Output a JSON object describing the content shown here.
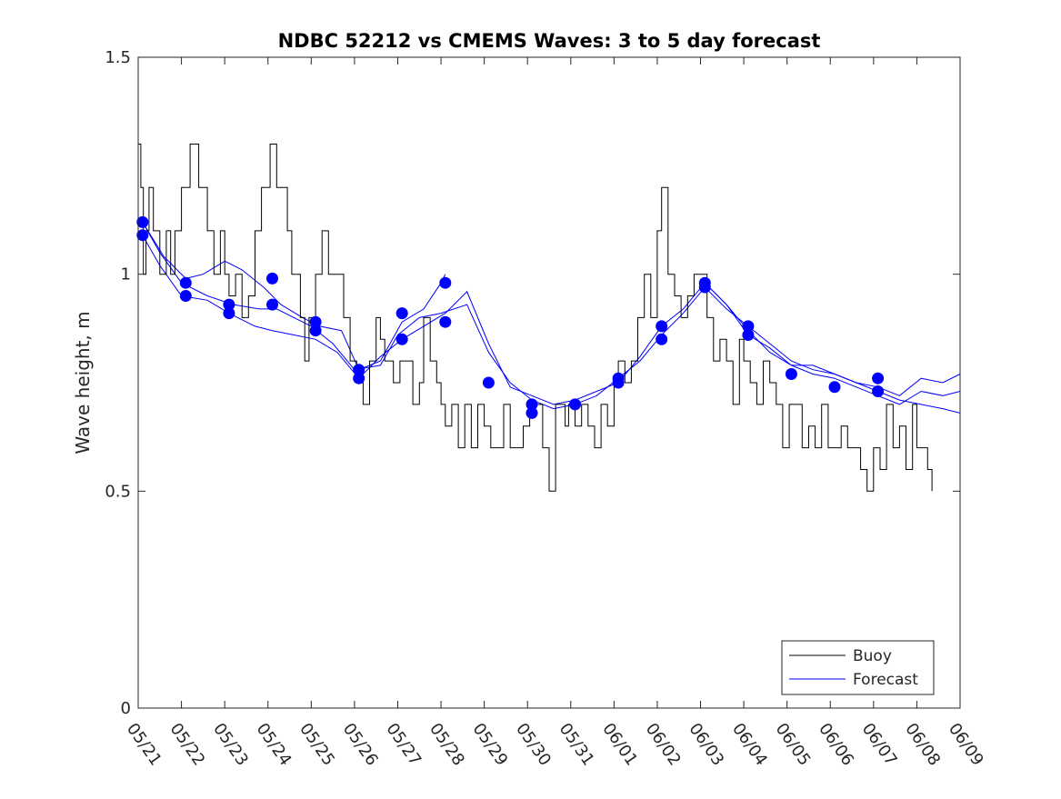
{
  "chart_data": {
    "type": "line",
    "title": "NDBC 52212 vs CMEMS Waves: 3 to 5 day forecast",
    "xlabel": "",
    "ylabel": "Wave height, m",
    "xlim": [
      0,
      19
    ],
    "ylim": [
      0,
      1.5
    ],
    "x_tick_labels": [
      "05/21",
      "05/22",
      "05/23",
      "05/24",
      "05/25",
      "05/26",
      "05/27",
      "05/28",
      "05/29",
      "05/30",
      "05/31",
      "06/01",
      "06/02",
      "06/03",
      "06/04",
      "06/05",
      "06/06",
      "06/07",
      "06/08",
      "06/09"
    ],
    "y_ticks": [
      0,
      0.5,
      1,
      1.5
    ],
    "y_tick_labels": [
      "0",
      "0.5",
      "1",
      "1.5"
    ],
    "grid": false,
    "legend": {
      "position": "bottom-right",
      "entries": [
        "Buoy",
        "Forecast"
      ]
    },
    "colors": {
      "buoy": "#000000",
      "forecast": "#0000ff"
    },
    "buoy": {
      "name": "Buoy",
      "x": [
        0,
        0.06,
        0.12,
        0.18,
        0.25,
        0.35,
        0.5,
        0.65,
        0.75,
        0.85,
        1.0,
        1.2,
        1.4,
        1.6,
        1.75,
        1.9,
        2.0,
        2.1,
        2.25,
        2.4,
        2.55,
        2.7,
        2.85,
        2.95,
        3.05,
        3.2,
        3.35,
        3.45,
        3.55,
        3.75,
        3.85,
        3.95,
        4.1,
        4.25,
        4.4,
        4.6,
        4.75,
        4.9,
        5.05,
        5.2,
        5.35,
        5.5,
        5.6,
        5.7,
        5.75,
        5.9,
        6.05,
        6.2,
        6.35,
        6.5,
        6.6,
        6.75,
        6.9,
        7.0,
        7.1,
        7.25,
        7.4,
        7.55,
        7.7,
        7.85,
        8.0,
        8.15,
        8.3,
        8.45,
        8.6,
        8.75,
        8.9,
        9.05,
        9.2,
        9.35,
        9.5,
        9.65,
        9.8,
        9.87,
        9.95,
        10.1,
        10.25,
        10.4,
        10.55,
        10.7,
        10.85,
        11.0,
        11.1,
        11.25,
        11.4,
        11.55,
        11.7,
        11.85,
        12.0,
        12.1,
        12.25,
        12.4,
        12.55,
        12.7,
        12.85,
        13.0,
        13.15,
        13.3,
        13.45,
        13.6,
        13.75,
        13.9,
        14.0,
        14.15,
        14.3,
        14.45,
        14.6,
        14.75,
        14.9,
        15.05,
        15.2,
        15.35,
        15.5,
        15.65,
        15.8,
        15.95,
        16.1,
        16.25,
        16.4,
        16.55,
        16.7,
        16.85,
        17.0,
        17.15,
        17.3,
        17.45,
        17.6,
        17.75,
        17.9,
        18.0,
        18.1,
        18.25,
        18.35
      ],
      "y": [
        1.3,
        1.2,
        1.0,
        1.1,
        1.2,
        1.1,
        1.0,
        1.1,
        1.0,
        1.1,
        1.2,
        1.3,
        1.2,
        1.1,
        1.0,
        1.1,
        1.0,
        0.95,
        1.0,
        0.9,
        0.95,
        1.1,
        1.2,
        1.2,
        1.3,
        1.2,
        1.2,
        1.1,
        1.0,
        0.9,
        0.8,
        0.9,
        1.0,
        1.1,
        1.0,
        1.0,
        0.9,
        0.8,
        0.75,
        0.7,
        0.8,
        0.9,
        0.85,
        0.8,
        0.8,
        0.75,
        0.8,
        0.8,
        0.7,
        0.75,
        0.9,
        0.8,
        0.75,
        0.7,
        0.65,
        0.7,
        0.6,
        0.7,
        0.6,
        0.7,
        0.65,
        0.6,
        0.6,
        0.7,
        0.6,
        0.6,
        0.65,
        0.7,
        0.7,
        0.6,
        0.5,
        0.7,
        0.7,
        0.65,
        0.7,
        0.65,
        0.7,
        0.65,
        0.6,
        0.7,
        0.65,
        0.75,
        0.8,
        0.75,
        0.8,
        0.9,
        1.0,
        0.9,
        1.1,
        1.2,
        1.0,
        0.95,
        0.9,
        0.95,
        1.0,
        1.0,
        0.9,
        0.8,
        0.85,
        0.8,
        0.7,
        0.85,
        0.8,
        0.75,
        0.7,
        0.8,
        0.75,
        0.7,
        0.6,
        0.7,
        0.7,
        0.6,
        0.65,
        0.6,
        0.7,
        0.6,
        0.6,
        0.65,
        0.6,
        0.6,
        0.55,
        0.5,
        0.6,
        0.55,
        0.7,
        0.6,
        0.65,
        0.55,
        0.7,
        0.6,
        0.6,
        0.55,
        0.5
      ]
    },
    "forecast": {
      "name": "Forecast",
      "runs": [
        {
          "x": [
            0.1,
            0.5,
            1.0,
            1.6,
            2.2,
            2.8,
            3.2,
            3.6,
            4.0,
            4.5,
            5.0,
            5.6,
            6.0,
            6.5,
            7.0,
            7.6,
            8.1,
            8.6,
            9.1,
            9.6,
            10.1,
            10.6,
            11.1,
            11.6,
            12.1,
            12.6,
            13.1,
            13.6,
            14.1,
            14.6,
            15.1,
            15.6,
            16.1,
            16.6,
            17.1,
            17.6,
            18.1,
            18.6,
            19.0
          ],
          "y": [
            1.12,
            1.05,
            0.98,
            0.95,
            0.93,
            0.92,
            0.92,
            0.9,
            0.88,
            0.84,
            0.78,
            0.79,
            0.86,
            0.9,
            0.91,
            0.93,
            0.82,
            0.75,
            0.71,
            0.69,
            0.7,
            0.72,
            0.76,
            0.8,
            0.86,
            0.91,
            0.97,
            0.92,
            0.88,
            0.84,
            0.8,
            0.78,
            0.77,
            0.75,
            0.73,
            0.71,
            0.7,
            0.69,
            0.68
          ]
        },
        {
          "x": [
            0.1,
            0.5,
            1.0,
            1.6,
            2.1,
            2.7,
            3.1,
            3.6,
            4.1,
            4.6,
            5.1,
            5.6,
            6.1,
            6.6,
            7.1,
            7.6,
            8.1,
            8.6,
            9.1,
            9.6,
            10.1,
            10.6,
            11.1,
            11.6,
            12.1,
            12.6,
            13.1,
            13.6,
            14.1,
            14.6,
            15.1,
            15.6,
            16.1,
            16.6,
            17.1,
            17.6,
            18.1,
            18.6,
            19.0
          ],
          "y": [
            1.09,
            1.02,
            0.95,
            0.94,
            0.91,
            0.88,
            0.87,
            0.86,
            0.85,
            0.82,
            0.76,
            0.81,
            0.85,
            0.88,
            0.91,
            0.96,
            0.84,
            0.74,
            0.72,
            0.7,
            0.71,
            0.73,
            0.75,
            0.81,
            0.88,
            0.92,
            0.98,
            0.93,
            0.86,
            0.83,
            0.79,
            0.77,
            0.76,
            0.74,
            0.72,
            0.7,
            0.73,
            0.72,
            0.73
          ]
        },
        {
          "x": [
            0.1,
            0.6,
            1.1,
            1.5,
            2.0,
            2.4,
            2.9,
            3.3,
            3.8,
            4.2,
            4.7,
            5.1,
            5.6,
            6.1,
            6.6,
            7.0,
            7.1
          ],
          "y": [
            1.12,
            1.04,
            0.99,
            1.0,
            1.03,
            1.01,
            0.97,
            0.93,
            0.9,
            0.88,
            0.87,
            0.78,
            0.8,
            0.89,
            0.92,
            0.98,
            1.0
          ]
        },
        {
          "x": [
            13.1,
            13.6,
            14.1,
            14.6,
            15.1,
            15.6,
            16.1,
            16.6,
            17.1,
            17.6,
            18.1,
            18.6,
            19.0
          ],
          "y": [
            0.98,
            0.93,
            0.87,
            0.82,
            0.79,
            0.79,
            0.77,
            0.75,
            0.74,
            0.72,
            0.76,
            0.75,
            0.77
          ]
        }
      ],
      "markers": {
        "x": [
          0.1,
          0.1,
          1.1,
          1.1,
          2.1,
          2.1,
          3.1,
          3.1,
          4.1,
          4.1,
          5.1,
          5.1,
          6.1,
          6.1,
          7.1,
          7.1,
          8.1,
          9.1,
          9.1,
          10.1,
          11.1,
          11.1,
          12.1,
          12.1,
          13.1,
          13.1,
          14.1,
          14.1,
          15.1,
          16.1,
          17.1,
          17.1
        ],
        "y": [
          1.12,
          1.09,
          0.98,
          0.95,
          0.93,
          0.91,
          0.99,
          0.93,
          0.89,
          0.87,
          0.78,
          0.76,
          0.91,
          0.85,
          0.98,
          0.89,
          0.75,
          0.7,
          0.68,
          0.7,
          0.76,
          0.75,
          0.88,
          0.85,
          0.98,
          0.97,
          0.88,
          0.86,
          0.77,
          0.74,
          0.76,
          0.73
        ]
      }
    }
  }
}
